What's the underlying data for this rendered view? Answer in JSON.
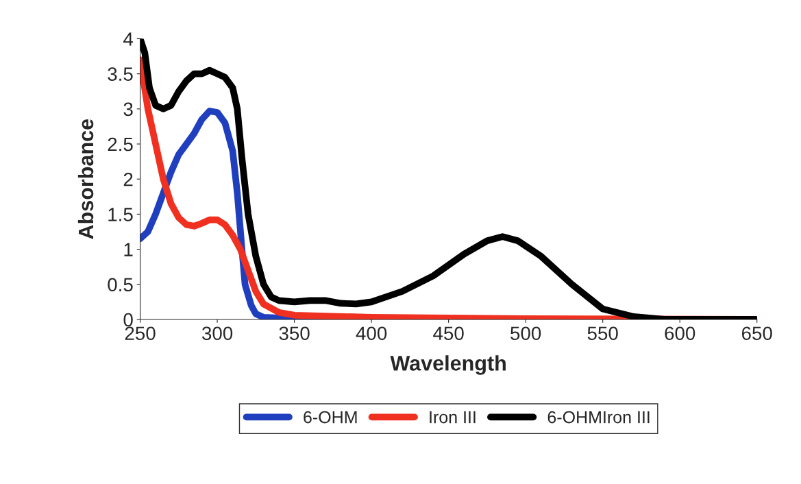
{
  "chart_data": {
    "type": "line",
    "xlabel": "Wavelength",
    "ylabel": "Absorbance",
    "xlim": [
      250,
      650
    ],
    "ylim": [
      0,
      4
    ],
    "xticks": [
      250,
      300,
      350,
      400,
      450,
      500,
      550,
      600,
      650
    ],
    "yticks": [
      0,
      0.5,
      1,
      1.5,
      2,
      2.5,
      3,
      3.5,
      4
    ],
    "grid": false,
    "legend": "bottom",
    "marker": "circle",
    "line_style": "solid",
    "series": [
      {
        "name": "6-OHM",
        "color": "#1f3fbf",
        "x": [
          250,
          255,
          260,
          265,
          270,
          275,
          280,
          285,
          290,
          295,
          300,
          305,
          310,
          313,
          316,
          318,
          322,
          325,
          330,
          350,
          400,
          440
        ],
        "values": [
          1.15,
          1.25,
          1.5,
          1.8,
          2.1,
          2.35,
          2.5,
          2.65,
          2.85,
          2.97,
          2.95,
          2.8,
          2.4,
          1.8,
          1.0,
          0.5,
          0.2,
          0.08,
          0.03,
          0.01,
          0.0,
          0.0
        ]
      },
      {
        "name": "Iron III",
        "color": "#f03020",
        "x": [
          250,
          255,
          260,
          265,
          270,
          275,
          280,
          285,
          290,
          295,
          300,
          305,
          310,
          315,
          320,
          325,
          330,
          340,
          350,
          400,
          500,
          650
        ],
        "values": [
          3.7,
          3.0,
          2.5,
          2.0,
          1.65,
          1.45,
          1.35,
          1.33,
          1.37,
          1.42,
          1.42,
          1.35,
          1.2,
          1.0,
          0.7,
          0.4,
          0.22,
          0.1,
          0.06,
          0.03,
          0.01,
          0.0
        ]
      },
      {
        "name": "6-OHMIron III",
        "color": "#000000",
        "x": [
          250,
          253,
          256,
          260,
          265,
          270,
          275,
          280,
          285,
          290,
          295,
          300,
          305,
          310,
          313,
          316,
          320,
          325,
          330,
          335,
          340,
          350,
          360,
          370,
          380,
          390,
          400,
          420,
          440,
          460,
          475,
          485,
          495,
          510,
          530,
          550,
          570,
          590,
          650
        ],
        "values": [
          4.0,
          3.8,
          3.3,
          3.05,
          3.0,
          3.05,
          3.25,
          3.4,
          3.5,
          3.5,
          3.55,
          3.5,
          3.45,
          3.3,
          3.0,
          2.3,
          1.5,
          0.9,
          0.5,
          0.32,
          0.27,
          0.25,
          0.27,
          0.27,
          0.23,
          0.22,
          0.25,
          0.4,
          0.62,
          0.93,
          1.12,
          1.18,
          1.12,
          0.9,
          0.5,
          0.15,
          0.04,
          0.0,
          0.0
        ]
      }
    ]
  }
}
